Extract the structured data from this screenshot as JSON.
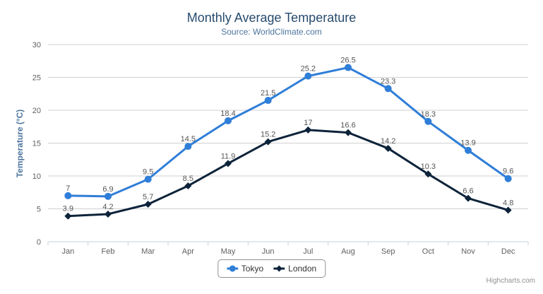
{
  "chart_data": {
    "type": "line",
    "title": "Monthly Average Temperature",
    "subtitle": "Source: WorldClimate.com",
    "xlabel": "",
    "ylabel": "Temperature (°C)",
    "ylim": [
      0,
      30
    ],
    "yticks": [
      0,
      5,
      10,
      15,
      20,
      25,
      30
    ],
    "grid": "horizontal",
    "legend_position": "bottom-center",
    "data_labels": true,
    "categories": [
      "Jan",
      "Feb",
      "Mar",
      "Apr",
      "May",
      "Jun",
      "Jul",
      "Aug",
      "Sep",
      "Oct",
      "Nov",
      "Dec"
    ],
    "series": [
      {
        "name": "Tokyo",
        "color": "#2f7ed8",
        "marker": "circle",
        "values": [
          7,
          6.9,
          9.5,
          14.5,
          18.4,
          21.5,
          25.2,
          26.5,
          23.3,
          18.3,
          13.9,
          9.6
        ]
      },
      {
        "name": "London",
        "color": "#0d233a",
        "marker": "diamond",
        "values": [
          3.9,
          4.2,
          5.7,
          8.5,
          11.9,
          15.2,
          17,
          16.6,
          14.2,
          10.3,
          6.6,
          4.8
        ]
      }
    ]
  },
  "credits": {
    "label": "Highcharts.com"
  },
  "colors": {
    "title": "#274b6d",
    "subtitle": "#4d759e",
    "axis_label": "#606060",
    "data_label": "#555555",
    "gridline": "#d0d0d0",
    "axis_line": "#c0d0e0",
    "legend_border": "#909090",
    "menu_icon": "#666666",
    "credits_text": "#909090"
  }
}
